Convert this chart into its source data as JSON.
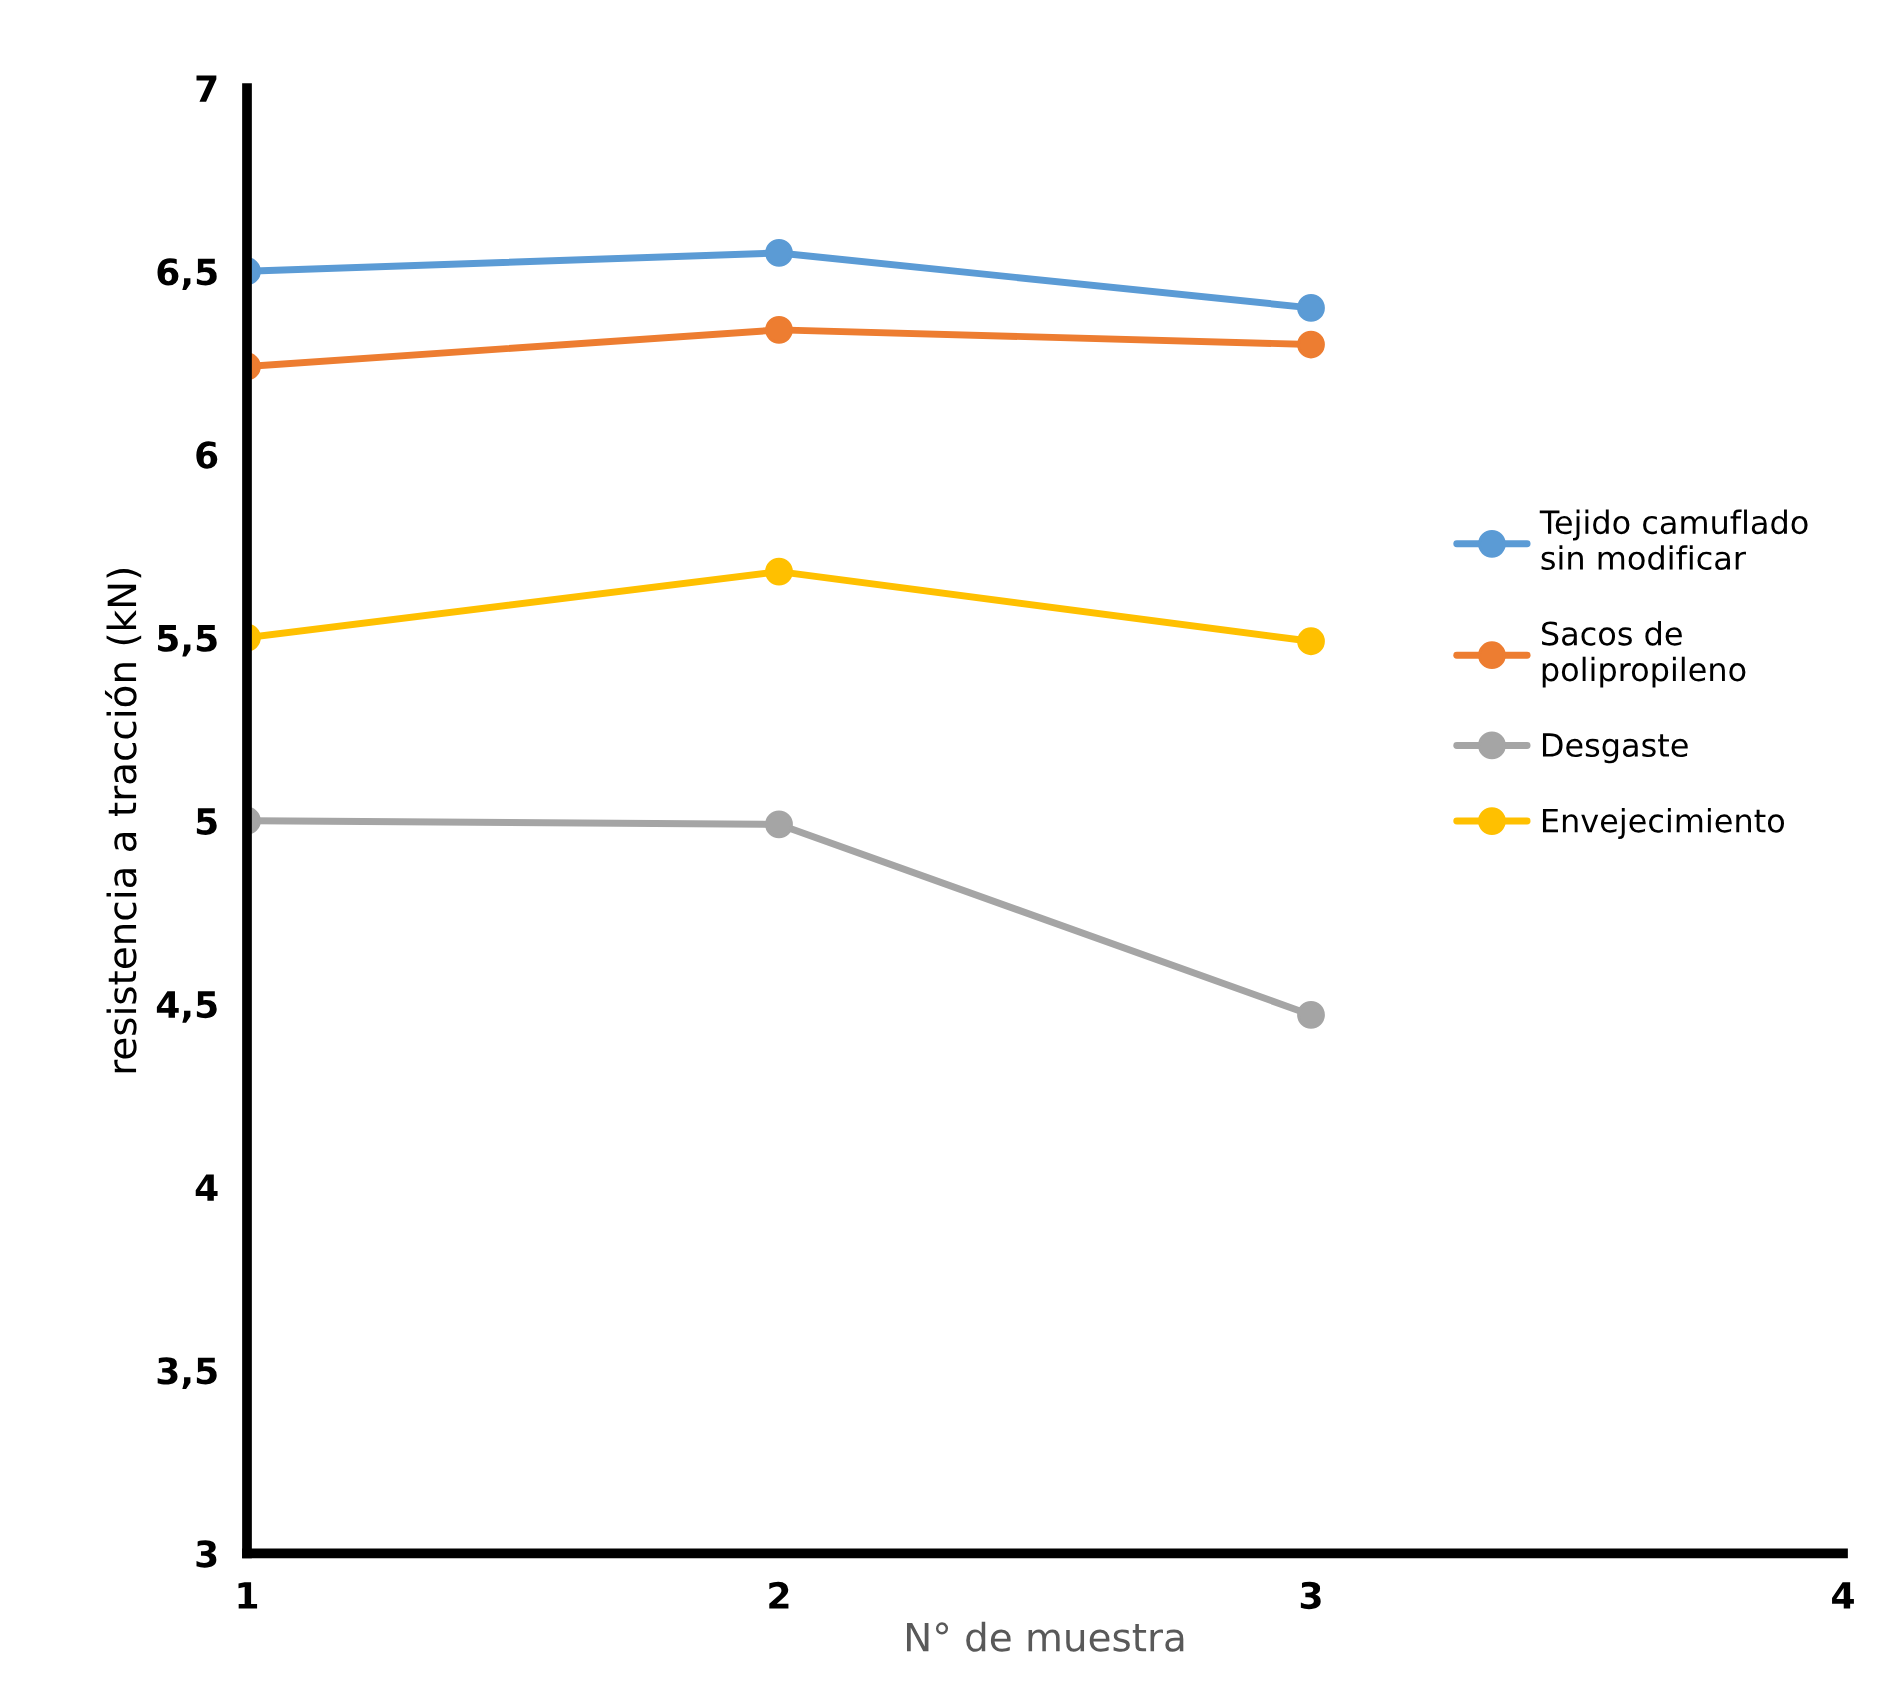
{
  "chart_data": {
    "type": "line",
    "xlabel": "N° de muestra",
    "ylabel": "resistencia a tracción (kN)",
    "x": [
      1,
      2,
      3
    ],
    "series": [
      {
        "name": "Tejido camuflado sin modificar",
        "color": "#5b9bd5",
        "values": [
          6.5,
          6.55,
          6.4
        ]
      },
      {
        "name": "Sacos de polipropileno",
        "color": "#ed7d31",
        "values": [
          6.24,
          6.34,
          6.3
        ]
      },
      {
        "name": "Desgaste",
        "color": "#a5a5a5",
        "values": [
          5.0,
          4.99,
          4.47
        ]
      },
      {
        "name": "Envejecimiento",
        "color": "#ffc000",
        "values": [
          5.5,
          5.68,
          5.49
        ]
      }
    ],
    "xlim": [
      1,
      4
    ],
    "xticks": [
      1,
      2,
      3,
      4
    ],
    "ylim": [
      3,
      7
    ],
    "yticks": [
      3,
      {
        "value": 3.5,
        "label": "3,5"
      },
      4,
      {
        "value": 4.5,
        "label": "4,5"
      },
      5,
      {
        "value": 5.5,
        "label": "5,5"
      },
      6,
      {
        "value": 6.5,
        "label": "6,5"
      },
      7
    ],
    "grid": false,
    "legend": "right",
    "marker": "circle",
    "line_style": "solid"
  }
}
